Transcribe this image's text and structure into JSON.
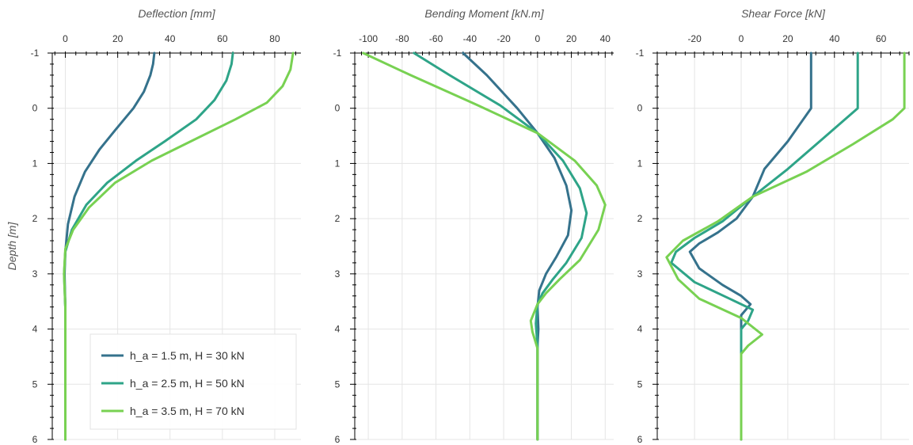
{
  "chart_data": [
    {
      "type": "line",
      "title": "Deflection [mm]",
      "xlabel": "Deflection [mm]",
      "ylabel": "Depth [m]",
      "xlim": [
        -5,
        90
      ],
      "ylim": [
        6,
        -1
      ],
      "xticks": [
        0,
        20,
        40,
        60,
        80
      ],
      "yticks": [
        -1,
        0,
        1,
        2,
        3,
        4,
        5,
        6
      ],
      "grid": true,
      "legend_position": "bottom-right",
      "series": [
        {
          "name": "h_a = 1.5 m, H = 30 kN",
          "color": "#35728c",
          "points": [
            [
              34,
              -1
            ],
            [
              33.5,
              -0.8
            ],
            [
              32.5,
              -0.6
            ],
            [
              30,
              -0.3
            ],
            [
              26,
              0
            ],
            [
              19,
              0.4
            ],
            [
              13,
              0.75
            ],
            [
              7.5,
              1.15
            ],
            [
              3.5,
              1.6
            ],
            [
              1,
              2.1
            ],
            [
              0,
              2.6
            ],
            [
              -0.3,
              3.0
            ],
            [
              0,
              3.6
            ],
            [
              0,
              4.5
            ],
            [
              0,
              6
            ]
          ]
        },
        {
          "name": "h_a = 2.5 m, H = 50 kN",
          "color": "#2ea488",
          "points": [
            [
              64,
              -1
            ],
            [
              63.5,
              -0.8
            ],
            [
              61.5,
              -0.5
            ],
            [
              57,
              -0.15
            ],
            [
              50,
              0.2
            ],
            [
              38,
              0.6
            ],
            [
              27,
              0.95
            ],
            [
              16,
              1.35
            ],
            [
              8,
              1.75
            ],
            [
              2.5,
              2.2
            ],
            [
              0,
              2.6
            ],
            [
              -0.5,
              3.0
            ],
            [
              0,
              3.6
            ],
            [
              0,
              4.5
            ],
            [
              0,
              6
            ]
          ]
        },
        {
          "name": "h_a = 3.5 m, H = 70 kN",
          "color": "#78d152",
          "points": [
            [
              87,
              -1
            ],
            [
              86,
              -0.7
            ],
            [
              83,
              -0.4
            ],
            [
              77,
              -0.1
            ],
            [
              65,
              0.2
            ],
            [
              50,
              0.55
            ],
            [
              33,
              0.95
            ],
            [
              19,
              1.35
            ],
            [
              9,
              1.8
            ],
            [
              3,
              2.2
            ],
            [
              0,
              2.55
            ],
            [
              -0.5,
              3.0
            ],
            [
              0,
              3.6
            ],
            [
              0,
              4.5
            ],
            [
              0,
              6
            ]
          ]
        }
      ]
    },
    {
      "type": "line",
      "title": "Bending Moment [kN.m]",
      "xlabel": "Bending Moment [kN.m]",
      "xlim": [
        -108,
        45
      ],
      "ylim": [
        6,
        -1
      ],
      "xticks": [
        -100,
        -80,
        -60,
        -40,
        -20,
        0,
        20,
        40
      ],
      "yticks": [
        -1,
        0,
        1,
        2,
        3,
        4,
        5,
        6
      ],
      "grid": true,
      "series": [
        {
          "name": "h_a = 1.5 m, H = 30 kN",
          "color": "#35728c",
          "points": [
            [
              -44,
              -1
            ],
            [
              -30,
              -0.6
            ],
            [
              -12,
              0
            ],
            [
              0,
              0.45
            ],
            [
              10,
              0.9
            ],
            [
              17,
              1.4
            ],
            [
              20,
              1.85
            ],
            [
              18,
              2.3
            ],
            [
              11,
              2.7
            ],
            [
              5,
              3.0
            ],
            [
              1,
              3.3
            ],
            [
              0,
              3.6
            ],
            [
              0.5,
              4.0
            ],
            [
              0,
              4.3
            ],
            [
              0,
              6
            ]
          ]
        },
        {
          "name": "h_a = 2.5 m, H = 50 kN",
          "color": "#2ea488",
          "points": [
            [
              -73,
              -1
            ],
            [
              -52,
              -0.6
            ],
            [
              -22,
              -0.05
            ],
            [
              0,
              0.45
            ],
            [
              15,
              0.95
            ],
            [
              25,
              1.45
            ],
            [
              29,
              1.9
            ],
            [
              26,
              2.35
            ],
            [
              17,
              2.8
            ],
            [
              9,
              3.1
            ],
            [
              3,
              3.35
            ],
            [
              0,
              3.55
            ],
            [
              -1,
              3.9
            ],
            [
              0,
              4.3
            ],
            [
              0,
              6
            ]
          ]
        },
        {
          "name": "h_a = 3.5 m, H = 70 kN",
          "color": "#78d152",
          "points": [
            [
              -103,
              -1
            ],
            [
              -75,
              -0.6
            ],
            [
              -35,
              -0.05
            ],
            [
              0,
              0.45
            ],
            [
              22,
              0.95
            ],
            [
              35,
              1.4
            ],
            [
              40,
              1.75
            ],
            [
              36,
              2.2
            ],
            [
              25,
              2.75
            ],
            [
              13,
              3.1
            ],
            [
              5,
              3.35
            ],
            [
              0,
              3.55
            ],
            [
              -4,
              3.85
            ],
            [
              -3,
              4.05
            ],
            [
              0,
              4.35
            ],
            [
              0,
              6
            ]
          ]
        }
      ]
    },
    {
      "type": "line",
      "title": "Shear Force [kN]",
      "xlabel": "Shear Force [kN]",
      "xlim": [
        -36,
        72
      ],
      "ylim": [
        6,
        -1
      ],
      "xticks": [
        -20,
        0,
        20,
        40,
        60
      ],
      "yticks": [
        -1,
        0,
        1,
        2,
        3,
        4,
        5,
        6
      ],
      "grid": true,
      "series": [
        {
          "name": "h_a = 1.5 m, H = 30 kN",
          "color": "#35728c",
          "points": [
            [
              30,
              -1
            ],
            [
              30,
              0
            ],
            [
              20,
              0.6
            ],
            [
              10,
              1.1
            ],
            [
              5,
              1.6
            ],
            [
              -2,
              2.0
            ],
            [
              -10,
              2.25
            ],
            [
              -18,
              2.45
            ],
            [
              -22,
              2.6
            ],
            [
              -18,
              2.9
            ],
            [
              -8,
              3.2
            ],
            [
              0,
              3.4
            ],
            [
              4,
              3.55
            ],
            [
              0,
              3.75
            ],
            [
              0,
              4.5
            ],
            [
              0,
              6
            ]
          ]
        },
        {
          "name": "h_a = 2.5 m, H = 50 kN",
          "color": "#2ea488",
          "points": [
            [
              50,
              -1
            ],
            [
              50,
              0
            ],
            [
              35,
              0.55
            ],
            [
              20,
              1.1
            ],
            [
              5,
              1.6
            ],
            [
              -8,
              2.05
            ],
            [
              -20,
              2.35
            ],
            [
              -28,
              2.6
            ],
            [
              -30,
              2.8
            ],
            [
              -20,
              3.15
            ],
            [
              -5,
              3.45
            ],
            [
              5,
              3.65
            ],
            [
              3,
              3.85
            ],
            [
              0,
              4.0
            ],
            [
              0,
              4.5
            ],
            [
              0,
              6
            ]
          ]
        },
        {
          "name": "h_a = 3.5 m, H = 70 kN",
          "color": "#78d152",
          "points": [
            [
              70,
              -1
            ],
            [
              70,
              0
            ],
            [
              65,
              0.2
            ],
            [
              48,
              0.65
            ],
            [
              28,
              1.15
            ],
            [
              5,
              1.6
            ],
            [
              -10,
              2.05
            ],
            [
              -25,
              2.4
            ],
            [
              -32,
              2.7
            ],
            [
              -27,
              3.1
            ],
            [
              -18,
              3.45
            ],
            [
              0,
              3.8
            ],
            [
              9,
              4.1
            ],
            [
              3,
              4.3
            ],
            [
              0,
              4.45
            ],
            [
              0,
              6
            ]
          ]
        }
      ]
    }
  ]
}
